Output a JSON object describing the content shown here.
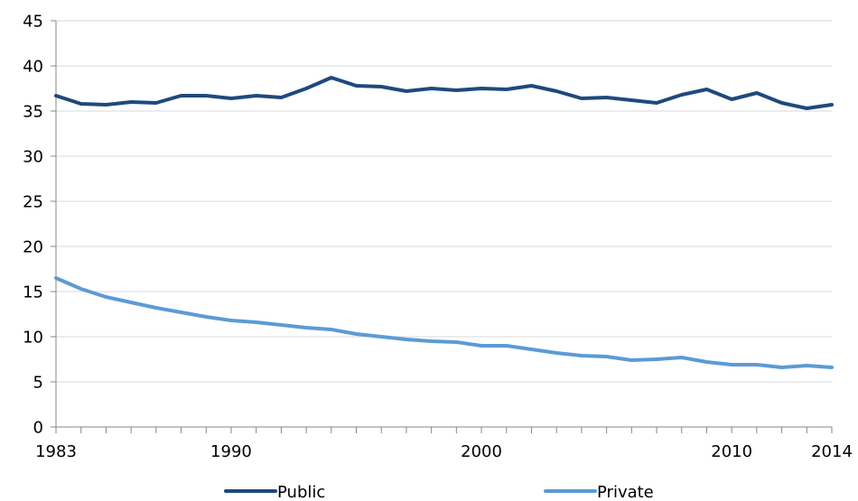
{
  "chart_data": {
    "type": "line",
    "x": [
      1983,
      1984,
      1985,
      1986,
      1987,
      1988,
      1989,
      1990,
      1991,
      1992,
      1993,
      1994,
      1995,
      1996,
      1997,
      1998,
      1999,
      2000,
      2001,
      2002,
      2003,
      2004,
      2005,
      2006,
      2007,
      2008,
      2009,
      2010,
      2011,
      2012,
      2013,
      2014
    ],
    "x_tick_labels": [
      "1983",
      "1990",
      "2000",
      "2010",
      "2014"
    ],
    "y_tick_labels": [
      "0",
      "5",
      "10",
      "15",
      "20",
      "25",
      "30",
      "35",
      "40",
      "45"
    ],
    "ylim": [
      0,
      45
    ],
    "xlim": [
      1983,
      2014
    ],
    "grid": "horizontal",
    "legend_position": "bottom",
    "series": [
      {
        "name": "Public",
        "color": "#1f497d",
        "values": [
          36.7,
          35.8,
          35.7,
          36.0,
          35.9,
          36.7,
          36.7,
          36.4,
          36.7,
          36.5,
          37.5,
          38.7,
          37.8,
          37.7,
          37.2,
          37.5,
          37.3,
          37.5,
          37.4,
          37.8,
          37.2,
          36.4,
          36.5,
          36.2,
          35.9,
          36.8,
          37.4,
          36.3,
          37.0,
          35.9,
          35.3,
          35.7
        ]
      },
      {
        "name": "Private",
        "color": "#5b9bd5",
        "values": [
          16.5,
          15.3,
          14.4,
          13.8,
          13.2,
          12.7,
          12.2,
          11.8,
          11.6,
          11.3,
          11.0,
          10.8,
          10.3,
          10.0,
          9.7,
          9.5,
          9.4,
          9.0,
          9.0,
          8.6,
          8.2,
          7.9,
          7.8,
          7.4,
          7.5,
          7.7,
          7.2,
          6.9,
          6.9,
          6.6,
          6.8,
          6.6
        ]
      }
    ]
  }
}
